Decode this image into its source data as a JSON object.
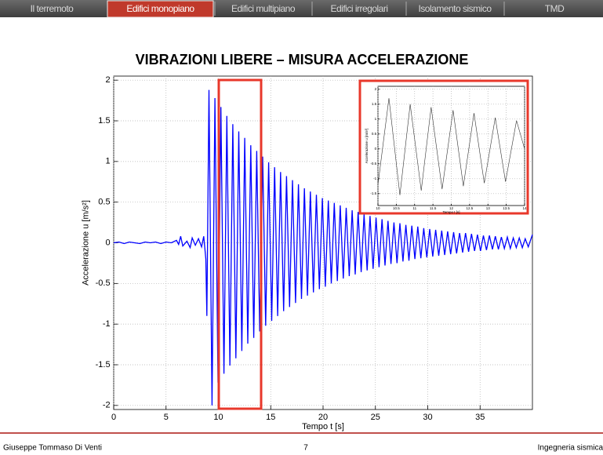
{
  "nav": {
    "tabs": [
      "Il terremoto",
      "Edifici monopiano",
      "Edifici multipiano",
      "Edifici irregolari",
      "Isolamento sismico",
      "TMD"
    ],
    "active": 1
  },
  "footer": {
    "author": "Giuseppe Tommaso Di Venti",
    "page": "7",
    "course": "Ingegneria sismica"
  },
  "chart_data": [
    {
      "type": "line",
      "title": "VIBRAZIONI LIBERE – MISURA ACCELERAZIONE",
      "xlabel": "Tempo t [s]",
      "ylabel": "Accelerazione u [m/s²]",
      "color": "#0000ff",
      "grid": true,
      "xlim": [
        0,
        40
      ],
      "ylim": [
        -2.05,
        2.05
      ],
      "xticks": [
        0,
        5,
        10,
        15,
        20,
        25,
        30,
        35
      ],
      "yticks": [
        -2,
        -1.5,
        -1,
        -0.5,
        0,
        0.5,
        1,
        1.5,
        2
      ],
      "x": [
        0,
        0.5,
        1,
        1.5,
        2,
        2.5,
        3,
        3.5,
        4,
        4.5,
        5,
        5.5,
        6,
        6.2,
        6.4,
        6.6,
        7,
        7.3,
        7.5,
        7.8,
        8.1,
        8.4,
        8.6,
        8.8,
        8.9,
        9.1,
        9.39,
        9.67,
        9.96,
        10.24,
        10.53,
        10.81,
        11.1,
        11.38,
        11.67,
        11.95,
        12.24,
        12.52,
        12.81,
        13.09,
        13.38,
        13.66,
        13.95,
        14.23,
        14.52,
        14.8,
        15.09,
        15.37,
        15.66,
        15.94,
        16.23,
        16.51,
        16.8,
        17.08,
        17.37,
        17.65,
        17.94,
        18.22,
        18.51,
        18.79,
        19.08,
        19.36,
        19.65,
        19.93,
        20.22,
        20.5,
        20.79,
        21.07,
        21.36,
        21.64,
        21.93,
        22.21,
        22.5,
        22.78,
        23.07,
        23.35,
        23.64,
        23.92,
        24.21,
        24.49,
        24.78,
        25.06,
        25.35,
        25.63,
        25.92,
        26.2,
        26.49,
        26.77,
        27.06,
        27.34,
        27.63,
        27.91,
        28.2,
        28.48,
        28.77,
        29.05,
        29.34,
        29.62,
        29.91,
        30.19,
        30.48,
        30.76,
        31.05,
        31.33,
        31.62,
        31.9,
        32.19,
        32.47,
        32.76,
        33.04,
        33.33,
        33.61,
        33.9,
        34.18,
        34.47,
        34.75,
        35.04,
        35.32,
        35.61,
        35.89,
        36.18,
        36.46,
        36.75,
        37.03,
        37.32,
        37.6,
        37.89,
        38.17,
        38.46,
        38.74,
        39.03,
        39.31,
        39.6,
        40
      ],
      "values": [
        0,
        0.01,
        -0.01,
        0.01,
        0,
        -0.01,
        0.01,
        0,
        0.01,
        -0.01,
        0.01,
        0,
        0.03,
        -0.02,
        0.08,
        -0.04,
        0.02,
        -0.06,
        0.06,
        -0.03,
        0.05,
        -0.05,
        0.08,
        -0.2,
        -0.9,
        1.88,
        -2.0,
        1.78,
        -1.72,
        1.67,
        -1.61,
        1.56,
        -1.51,
        1.46,
        -1.42,
        1.37,
        -1.33,
        1.29,
        -1.24,
        1.2,
        -1.17,
        1.13,
        -1.09,
        1.06,
        -1.02,
        0.99,
        -0.96,
        0.93,
        -0.9,
        0.87,
        -0.84,
        0.82,
        -0.79,
        0.77,
        -0.74,
        0.72,
        -0.69,
        0.67,
        -0.65,
        0.63,
        -0.61,
        0.59,
        -0.57,
        0.55,
        -0.54,
        0.52,
        -0.5,
        0.49,
        -0.47,
        0.46,
        -0.44,
        0.43,
        -0.41,
        0.4,
        -0.39,
        0.38,
        -0.36,
        0.35,
        -0.34,
        0.33,
        -0.32,
        0.31,
        -0.3,
        0.29,
        -0.28,
        0.27,
        -0.26,
        0.25,
        -0.25,
        0.24,
        -0.23,
        0.22,
        -0.22,
        0.21,
        -0.2,
        0.2,
        -0.19,
        0.18,
        -0.18,
        0.17,
        -0.17,
        0.16,
        -0.16,
        0.15,
        -0.15,
        0.14,
        -0.14,
        0.13,
        -0.13,
        0.12,
        -0.12,
        0.12,
        -0.11,
        0.11,
        -0.1,
        0.1,
        -0.1,
        0.09,
        -0.09,
        0.09,
        -0.08,
        0.08,
        -0.08,
        0.07,
        -0.07,
        0.07,
        -0.07,
        0.06,
        -0.06,
        0.06,
        -0.06,
        0.05,
        -0.05,
        0.1
      ]
    },
    {
      "type": "line",
      "xlabel": "Tempo t [s]",
      "ylabel": "Accelerazione u [m/s²]",
      "color": "#333333",
      "grid": true,
      "xlim": [
        10,
        14
      ],
      "ylim": [
        -1.9,
        2.1
      ],
      "xticks": [
        10,
        10.5,
        11,
        11.5,
        12,
        12.5,
        13,
        13.5,
        14
      ],
      "yticks": [
        -1.5,
        -1,
        -0.5,
        0,
        0.5,
        1,
        1.5,
        2
      ],
      "x": [
        10.0,
        10.3,
        10.6,
        10.88,
        11.18,
        11.45,
        11.75,
        12.05,
        12.33,
        12.62,
        12.9,
        13.2,
        13.48,
        13.78,
        14.0
      ],
      "values": [
        -1.2,
        1.7,
        -1.55,
        1.5,
        -1.4,
        1.4,
        -1.35,
        1.3,
        -1.25,
        1.2,
        -1.15,
        1.05,
        -1.1,
        0.95,
        0.0
      ]
    }
  ]
}
